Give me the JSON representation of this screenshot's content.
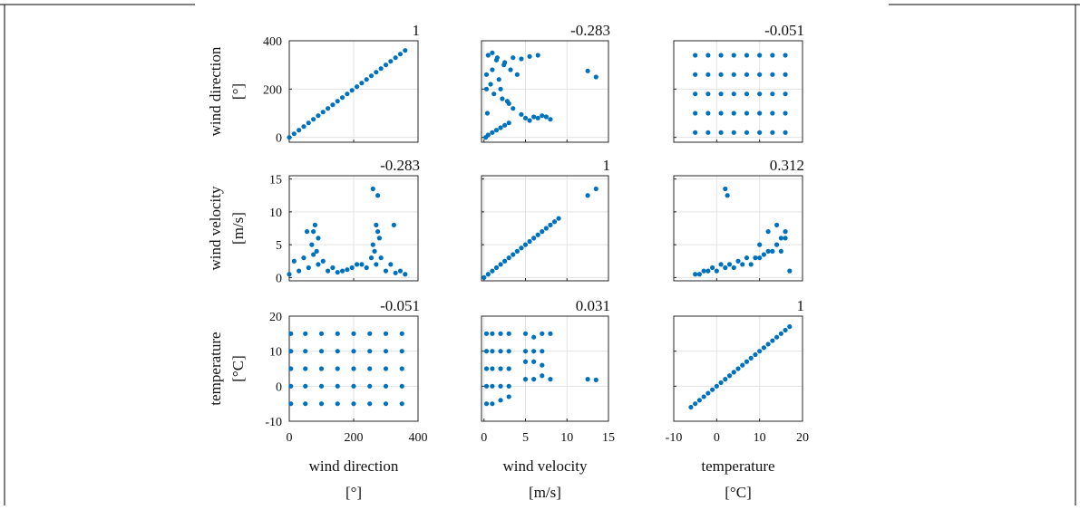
{
  "chart_data": [
    {
      "type": "scatter",
      "annotation": 1,
      "ylabel": [
        "wind direction",
        "[°]"
      ],
      "color": "#0072BD",
      "grid": true,
      "xlim": [
        0,
        400
      ],
      "xticks": [
        0,
        200,
        400
      ],
      "ylim": [
        -20,
        400
      ],
      "yticks": [
        0,
        200,
        400
      ],
      "x": [
        0,
        15,
        30,
        45,
        60,
        75,
        90,
        105,
        120,
        135,
        150,
        165,
        180,
        195,
        210,
        225,
        240,
        255,
        270,
        285,
        300,
        315,
        330,
        345,
        360
      ],
      "values": [
        0,
        15,
        30,
        45,
        60,
        75,
        90,
        105,
        120,
        135,
        150,
        165,
        180,
        195,
        210,
        225,
        240,
        255,
        270,
        285,
        300,
        315,
        330,
        345,
        360
      ]
    },
    {
      "type": "scatter",
      "annotation": -0.283,
      "color": "#0072BD",
      "grid": true,
      "xlim": [
        -0.3,
        15
      ],
      "xticks": [
        0,
        5,
        10,
        15
      ],
      "ylim": [
        -20,
        400
      ],
      "yticks": [
        0,
        200,
        400
      ],
      "x": [
        0.2,
        0.5,
        1,
        1.5,
        2,
        2.5,
        3,
        0.3,
        0.8,
        1.2,
        1.8,
        2.2,
        2.8,
        3.5,
        0.4,
        1,
        1.6,
        2.4,
        3.2,
        4,
        5,
        6,
        7,
        8,
        4.5,
        5.5,
        6.5,
        7.5,
        0.5,
        1.5,
        2.5,
        3.5,
        4.5,
        5.5,
        6.5,
        0.3,
        1,
        2,
        3,
        12.5,
        13.5
      ],
      "values": [
        0,
        10,
        20,
        30,
        40,
        50,
        60,
        200,
        220,
        180,
        240,
        160,
        150,
        120,
        100,
        350,
        330,
        300,
        280,
        260,
        80,
        85,
        90,
        75,
        95,
        70,
        80,
        85,
        340,
        320,
        310,
        330,
        325,
        335,
        340,
        260,
        280,
        200,
        140,
        275,
        250
      ]
    },
    {
      "type": "scatter",
      "annotation": -0.051,
      "color": "#0072BD",
      "grid": true,
      "xlim": [
        -10,
        20
      ],
      "xticks": [
        -10,
        0,
        10,
        20
      ],
      "ylim": [
        -20,
        400
      ],
      "yticks": [
        0,
        200,
        400
      ],
      "x": [
        -5,
        -2,
        1,
        4,
        7,
        10,
        13,
        16,
        -5,
        -2,
        1,
        4,
        7,
        10,
        13,
        16,
        -5,
        -2,
        1,
        4,
        7,
        10,
        13,
        16,
        -5,
        -2,
        1,
        4,
        7,
        10,
        13,
        16,
        -5,
        -2,
        1,
        4,
        7,
        10,
        13,
        16
      ],
      "values": [
        20,
        20,
        20,
        20,
        20,
        20,
        20,
        20,
        100,
        100,
        100,
        100,
        100,
        100,
        100,
        100,
        180,
        180,
        180,
        180,
        180,
        180,
        180,
        180,
        260,
        260,
        260,
        260,
        260,
        260,
        260,
        260,
        340,
        340,
        340,
        340,
        340,
        340,
        340,
        340
      ]
    },
    {
      "type": "scatter",
      "annotation": -0.283,
      "ylabel": [
        "wind velocity",
        "[m/s]"
      ],
      "color": "#0072BD",
      "grid": true,
      "xlim": [
        0,
        400
      ],
      "xticks": [
        0,
        200,
        400
      ],
      "ylim": [
        -0.5,
        15.5
      ],
      "yticks": [
        0,
        5,
        10,
        15
      ],
      "x": [
        0,
        30,
        60,
        90,
        120,
        150,
        180,
        210,
        240,
        270,
        300,
        330,
        360,
        15,
        45,
        75,
        105,
        135,
        165,
        195,
        225,
        255,
        285,
        315,
        345,
        70,
        80,
        90,
        75,
        85,
        260,
        270,
        280,
        265,
        275,
        55,
        260,
        275,
        325
      ],
      "values": [
        0.5,
        1,
        1.5,
        2,
        1,
        0.8,
        1.2,
        2,
        1.5,
        2,
        1,
        0.7,
        0.5,
        2.5,
        3,
        3.5,
        2.5,
        1.5,
        1,
        1.5,
        2,
        3,
        3,
        2,
        1,
        5,
        8,
        6,
        7,
        4,
        5,
        8,
        6,
        4,
        7,
        7,
        13.5,
        12.5,
        8
      ]
    },
    {
      "type": "scatter",
      "annotation": 1,
      "color": "#0072BD",
      "grid": true,
      "xlim": [
        -0.3,
        15
      ],
      "xticks": [
        0,
        5,
        10,
        15
      ],
      "ylim": [
        -0.5,
        15.5
      ],
      "yticks": [
        0,
        5,
        10,
        15
      ],
      "x": [
        0,
        0.5,
        1,
        1.5,
        2,
        2.5,
        3,
        3.5,
        4,
        4.5,
        5,
        5.5,
        6,
        6.5,
        7,
        7.5,
        8,
        8.5,
        9,
        12.5,
        13.5
      ],
      "values": [
        0,
        0.5,
        1,
        1.5,
        2,
        2.5,
        3,
        3.5,
        4,
        4.5,
        5,
        5.5,
        6,
        6.5,
        7,
        7.5,
        8,
        8.5,
        9,
        12.5,
        13.5
      ]
    },
    {
      "type": "scatter",
      "annotation": 0.312,
      "color": "#0072BD",
      "grid": true,
      "xlim": [
        -10,
        20
      ],
      "xticks": [
        -10,
        0,
        10,
        20
      ],
      "ylim": [
        -0.5,
        15.5
      ],
      "yticks": [
        0,
        5,
        10,
        15
      ],
      "x": [
        -5,
        -3,
        -1,
        1,
        3,
        5,
        7,
        9,
        11,
        13,
        15,
        17,
        -4,
        -2,
        0,
        2,
        4,
        6,
        8,
        10,
        12,
        14,
        16,
        10,
        12,
        14,
        15,
        16,
        2,
        2.5
      ],
      "values": [
        0.5,
        1,
        1.5,
        2,
        2,
        2.5,
        3,
        3,
        3.5,
        4,
        4,
        1,
        0.5,
        1,
        1,
        1.5,
        1.5,
        2,
        2,
        3,
        4,
        5,
        6,
        5,
        7,
        8,
        6,
        7,
        13.5,
        12.5
      ]
    },
    {
      "type": "scatter",
      "annotation": -0.051,
      "ylabel": [
        "temperature",
        "[°C]"
      ],
      "xlabel": [
        "wind direction",
        "[°]"
      ],
      "color": "#0072BD",
      "grid": true,
      "xlim": [
        0,
        400
      ],
      "xticks": [
        0,
        200,
        400
      ],
      "ylim": [
        -10,
        20
      ],
      "yticks": [
        -10,
        0,
        10,
        20
      ],
      "x": [
        5,
        50,
        100,
        150,
        200,
        250,
        300,
        350,
        5,
        50,
        100,
        150,
        200,
        250,
        300,
        350,
        5,
        50,
        100,
        150,
        200,
        250,
        300,
        350,
        5,
        50,
        100,
        150,
        200,
        250,
        300,
        350,
        5,
        50,
        100,
        150,
        200,
        250,
        300,
        350
      ],
      "values": [
        -5,
        -5,
        -5,
        -5,
        -5,
        -5,
        -5,
        -5,
        0,
        0,
        0,
        0,
        0,
        0,
        0,
        0,
        5,
        5,
        5,
        5,
        5,
        5,
        5,
        5,
        10,
        10,
        10,
        10,
        10,
        10,
        10,
        10,
        15,
        15,
        15,
        15,
        15,
        15,
        15,
        15
      ]
    },
    {
      "type": "scatter",
      "annotation": 0.031,
      "xlabel": [
        "wind velocity",
        "[m/s]"
      ],
      "color": "#0072BD",
      "grid": true,
      "xlim": [
        -0.3,
        15
      ],
      "xticks": [
        0,
        5,
        10,
        15
      ],
      "ylim": [
        -10,
        20
      ],
      "yticks": [
        -10,
        0,
        10,
        20
      ],
      "x": [
        0.3,
        1,
        2,
        3,
        0.3,
        1,
        2,
        3,
        0.3,
        1,
        2,
        3,
        0.3,
        1,
        2,
        3,
        0.3,
        1,
        2,
        3,
        5,
        6,
        7,
        8,
        5,
        6,
        7,
        5,
        6,
        7,
        5,
        6,
        7,
        8,
        12.5,
        13.5
      ],
      "values": [
        -5,
        -5,
        -4,
        -3,
        0,
        0,
        0,
        0,
        5,
        5,
        5,
        5,
        10,
        10,
        10,
        10,
        15,
        15,
        15,
        15,
        15,
        14,
        15,
        15,
        10,
        10,
        10,
        7,
        7,
        6,
        2,
        2,
        3,
        2,
        2,
        1.8
      ]
    },
    {
      "type": "scatter",
      "annotation": 1,
      "xlabel": [
        "temperature",
        "[°C]"
      ],
      "color": "#0072BD",
      "grid": true,
      "xlim": [
        -10,
        20
      ],
      "xticks": [
        -10,
        0,
        10,
        20
      ],
      "ylim": [
        -10,
        20
      ],
      "yticks": [
        -10,
        0,
        10,
        20
      ],
      "x": [
        -6,
        -5,
        -4,
        -3,
        -2,
        -1,
        0,
        1,
        2,
        3,
        4,
        5,
        6,
        7,
        8,
        9,
        10,
        11,
        12,
        13,
        14,
        15,
        16,
        17
      ],
      "values": [
        -6,
        -5,
        -4,
        -3,
        -2,
        -1,
        0,
        1,
        2,
        3,
        4,
        5,
        6,
        7,
        8,
        9,
        10,
        11,
        12,
        13,
        14,
        15,
        16,
        17
      ]
    }
  ]
}
